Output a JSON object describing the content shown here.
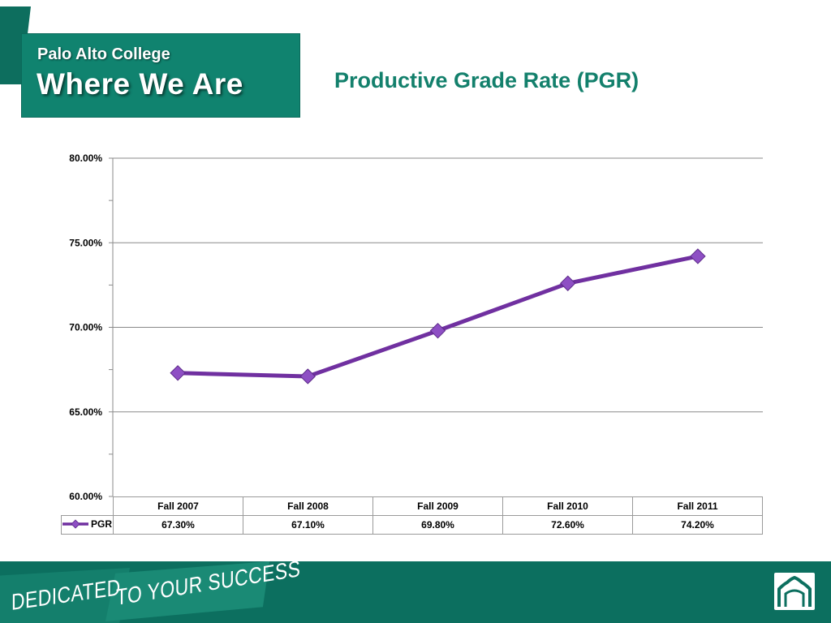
{
  "header": {
    "college": "Palo Alto College",
    "banner": "Where We Are",
    "title": "Productive Grade Rate (PGR)"
  },
  "chart_data": {
    "type": "line",
    "categories": [
      "Fall 2007",
      "Fall 2008",
      "Fall 2009",
      "Fall 2010",
      "Fall 2011"
    ],
    "series": [
      {
        "name": "PGR",
        "values": [
          67.3,
          67.1,
          69.8,
          72.6,
          74.2
        ],
        "labels": [
          "67.30%",
          "67.10%",
          "69.80%",
          "72.60%",
          "74.20%"
        ],
        "color": "#7030a0",
        "marker_color": "#8e4fc4",
        "marker": "diamond"
      }
    ],
    "ylim": [
      60,
      80
    ],
    "yticks": [
      "60.00%",
      "65.00%",
      "70.00%",
      "75.00%",
      "80.00%"
    ],
    "ytick_values": [
      60,
      65,
      70,
      75,
      80
    ],
    "y_minor_step": 2.5,
    "grid": true,
    "legend": "data-table",
    "title": "",
    "xlabel": "",
    "ylabel": ""
  },
  "footer": {
    "slogan_left": "DEDICATED",
    "slogan_right": "TO YOUR SUCCESS",
    "logo": "arch-icon"
  },
  "colors": {
    "brand_green": "#10836f",
    "footer_green": "#0c6f5f",
    "title_green": "#13806c",
    "line_purple": "#7030a0"
  }
}
